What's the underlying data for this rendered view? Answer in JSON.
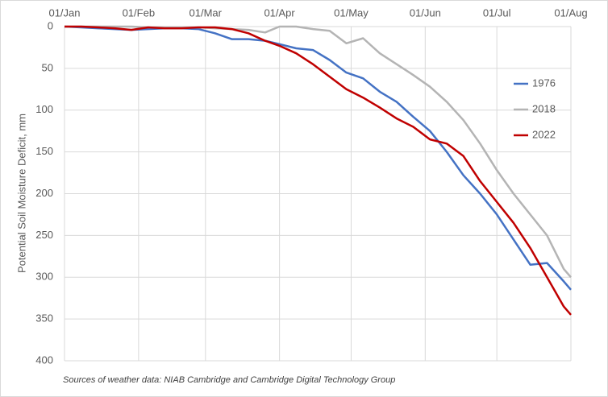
{
  "chart_data": {
    "type": "line",
    "y_label": "Potential Soil Moisture Deficit, mm",
    "footnote": "Sources of weather data: NIAB Cambridge and Cambridge Digital Technology Group",
    "x": [
      "01/Jan",
      "08/Jan",
      "15/Jan",
      "22/Jan",
      "29/Jan",
      "05/Feb",
      "12/Feb",
      "19/Feb",
      "26/Feb",
      "05/Mar",
      "12/Mar",
      "19/Mar",
      "26/Mar",
      "01/Apr",
      "08/Apr",
      "15/Apr",
      "22/Apr",
      "29/Apr",
      "06/May",
      "13/May",
      "20/May",
      "27/May",
      "03/Jun",
      "10/Jun",
      "17/Jun",
      "24/Jun",
      "01/Jul",
      "08/Jul",
      "15/Jul",
      "22/Jul",
      "29/Jul",
      "01/Aug"
    ],
    "xlim": [
      "01/Jan",
      "01/Aug"
    ],
    "xticks": [
      "01/Jan",
      "01/Feb",
      "01/Mar",
      "01/Apr",
      "01/May",
      "01/Jun",
      "01/Jul",
      "01/Aug"
    ],
    "ylim": [
      0,
      400
    ],
    "yticks": [
      0,
      50,
      100,
      150,
      200,
      250,
      300,
      350,
      400
    ],
    "y_reversed": true,
    "grid": true,
    "legend": "right",
    "series": [
      {
        "name": "1976",
        "color": "#4472c4",
        "values": [
          0,
          1,
          2,
          3,
          4,
          3,
          2,
          2,
          3,
          8,
          15,
          15,
          17,
          21,
          26,
          28,
          40,
          55,
          62,
          78,
          90,
          108,
          125,
          150,
          178,
          200,
          225,
          255,
          285,
          283,
          305,
          315
        ]
      },
      {
        "name": "2018",
        "color": "#b4b4b4",
        "values": [
          0,
          0,
          0,
          0,
          0,
          1,
          1,
          1,
          1,
          2,
          3,
          4,
          7,
          0,
          0,
          3,
          5,
          20,
          14,
          32,
          45,
          58,
          72,
          90,
          112,
          140,
          172,
          200,
          225,
          250,
          290,
          300
        ]
      },
      {
        "name": "2022",
        "color": "#c00000",
        "values": [
          0,
          0,
          1,
          2,
          4,
          1,
          2,
          2,
          1,
          1,
          3,
          8,
          17,
          23,
          32,
          45,
          60,
          75,
          85,
          97,
          110,
          120,
          135,
          140,
          155,
          185,
          210,
          235,
          265,
          300,
          335,
          345
        ]
      }
    ]
  }
}
